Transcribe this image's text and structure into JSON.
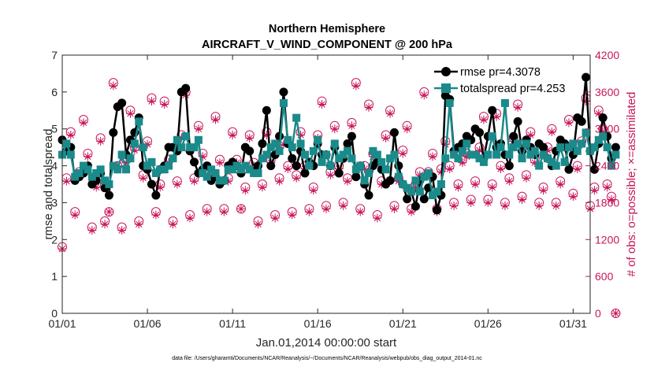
{
  "colors": {
    "rmse": "#000000",
    "spread": "#1a8a8a",
    "obs": "#c8155a",
    "axis": "#262626"
  },
  "chart_data": {
    "type": "line",
    "title_line1": "Northern Hemisphere",
    "title_line2": "AIRCRAFT_V_WIND_COMPONENT @ 200 hPa",
    "xlabel": "Jan.01,2014 00:00:00 start",
    "ylabel": "rmse and totalspread",
    "ylabel_right": "# of obs: o=possible; ×=assimilated",
    "xlim": [
      1,
      32
    ],
    "ylim": [
      0,
      7
    ],
    "ylim_right": [
      0,
      4200
    ],
    "x_ticks": [
      1,
      6,
      11,
      16,
      21,
      26,
      31
    ],
    "x_tick_labels": [
      "01/01",
      "01/06",
      "01/11",
      "01/16",
      "01/21",
      "01/26",
      "01/31"
    ],
    "y_ticks": [
      0,
      1,
      2,
      3,
      4,
      5,
      6,
      7
    ],
    "y_tick_labels": [
      "0",
      "1",
      "2",
      "3",
      "4",
      "5",
      "6",
      "7"
    ],
    "y_right_ticks": [
      0,
      600,
      1200,
      1800,
      2400,
      3000,
      3600,
      4200
    ],
    "y_right_tick_labels": [
      "0",
      "600",
      "1200",
      "1800",
      "2400",
      "3000",
      "3600",
      "4200"
    ],
    "legend": [
      "rmse pr=4.3078",
      "totalspread pr=4.253"
    ],
    "footnote": "data file: /Users/gharamti/Documents/NCAR/Reanalysis/~/Documents/NCAR/Reanalysis/webpub/obs_diag_output_2014-01.nc",
    "x_step_days": 0.25,
    "x_start": 1,
    "series": [
      {
        "name": "rmse",
        "values": [
          4.7,
          4.4,
          4.5,
          3.6,
          3.7,
          3.8,
          4.0,
          3.5,
          3.6,
          3.8,
          3.4,
          3.2,
          4.9,
          5.6,
          5.7,
          4.3,
          4.7,
          4.9,
          5.3,
          4.0,
          3.9,
          3.5,
          3.2,
          3.9,
          4.0,
          4.5,
          4.5,
          4.4,
          6.0,
          6.1,
          4.4,
          4.1,
          3.8,
          3.9,
          4.0,
          3.6,
          3.7,
          3.5,
          3.6,
          4.0,
          4.1,
          4.0,
          3.8,
          4.5,
          4.4,
          3.9,
          4.0,
          4.6,
          5.5,
          4.0,
          4.3,
          4.8,
          6.0,
          4.6,
          4.2,
          4.0,
          4.4,
          3.8,
          4.1,
          4.0,
          4.6,
          4.3,
          4.3,
          4.0,
          4.5,
          3.8,
          4.2,
          4.6,
          4.8,
          3.7,
          4.0,
          3.5,
          3.2,
          4.0,
          4.1,
          3.9,
          3.5,
          3.6,
          4.9,
          4.0,
          3.5,
          3.1,
          3.3,
          2.9,
          3.6,
          3.1,
          3.4,
          3.7,
          2.8,
          3.2,
          5.9,
          5.8,
          4.4,
          4.5,
          4.6,
          4.8,
          4.7,
          5.0,
          4.9,
          4.2,
          4.8,
          5.5,
          4.5,
          4.6,
          4.3,
          4.0,
          4.8,
          5.2,
          4.4,
          4.7,
          4.5,
          4.3,
          4.6,
          4.5,
          4.2,
          4.0,
          4.4,
          4.7,
          4.6,
          3.9,
          4.3,
          5.3,
          5.2,
          6.4,
          4.4,
          3.9,
          4.6,
          5.3,
          4.8,
          4.2,
          4.5
        ]
      },
      {
        "name": "totalspread",
        "values": [
          4.3,
          4.6,
          4.3,
          3.7,
          3.8,
          4.0,
          3.9,
          3.7,
          3.8,
          3.9,
          3.6,
          3.5,
          4.0,
          3.9,
          4.3,
          3.9,
          4.2,
          4.6,
          5.2,
          4.5,
          4.0,
          4.1,
          3.8,
          3.9,
          3.9,
          4.0,
          4.2,
          4.7,
          4.5,
          4.8,
          4.5,
          4.5,
          4.7,
          3.8,
          3.7,
          3.9,
          3.8,
          3.6,
          3.6,
          3.9,
          3.9,
          4.0,
          3.9,
          4.0,
          3.9,
          3.8,
          3.8,
          4.2,
          4.3,
          4.5,
          4.6,
          4.4,
          5.7,
          4.7,
          4.5,
          5.3,
          4.6,
          4.3,
          4.0,
          4.4,
          4.7,
          4.1,
          4.3,
          4.0,
          4.6,
          4.2,
          4.3,
          4.4,
          4.2,
          3.9,
          4.0,
          3.6,
          3.8,
          4.4,
          4.3,
          4.1,
          3.9,
          4.2,
          4.3,
          3.7,
          3.5,
          3.4,
          3.3,
          3.6,
          3.3,
          3.7,
          3.8,
          3.2,
          3.3,
          3.5,
          4.2,
          5.7,
          4.3,
          4.2,
          4.4,
          4.6,
          4.3,
          4.3,
          4.2,
          4.1,
          4.3,
          4.8,
          4.3,
          4.5,
          5.7,
          4.3,
          4.5,
          4.6,
          4.2,
          4.6,
          4.3,
          4.4,
          4.0,
          4.3,
          4.2,
          4.1,
          4.0,
          4.5,
          4.1,
          4.5,
          4.6,
          4.4,
          4.6,
          4.9,
          4.4,
          4.5,
          4.7,
          4.8,
          4.5,
          4.0,
          4.3
        ]
      },
      {
        "name": "obs_possible",
        "values": [
          1080,
          2200,
          2950,
          1650,
          2300,
          3150,
          2600,
          1400,
          2100,
          2850,
          1500,
          1650,
          3750,
          2400,
          1400,
          2500,
          3300,
          2700,
          1500,
          2250,
          2800,
          3500,
          1650,
          2100,
          3450,
          2500,
          1500,
          2150,
          2900,
          3600,
          1600,
          2200,
          3050,
          2600,
          1700,
          2250,
          3200,
          2500,
          1700,
          2200,
          2950,
          2500,
          1700,
          2050,
          2900,
          2450,
          1500,
          2100,
          2950,
          2500,
          1600,
          2200,
          2800,
          2400,
          1650,
          2250,
          2950,
          2400,
          1700,
          2050,
          2900,
          3450,
          1750,
          2300,
          3050,
          2400,
          1800,
          2200,
          3100,
          3750,
          1700,
          2400,
          3400,
          2600,
          1600,
          2150,
          2900,
          3300,
          1750,
          2200,
          2650,
          3050,
          1700,
          2100,
          2300,
          3600,
          2300,
          2600,
          1700,
          2350,
          2800,
          2400,
          1800,
          2100,
          2500,
          2600,
          1850,
          2150,
          2700,
          3200,
          1850,
          2100,
          3250,
          2400,
          1800,
          2200,
          2850,
          3400,
          1900,
          2250,
          2950,
          2500,
          1800,
          2050,
          2700,
          3000,
          1800,
          2150,
          2750,
          3150,
          1950,
          2400,
          2800,
          3500,
          1750,
          2050,
          3300,
          3000,
          2100,
          1900,
          0
        ]
      },
      {
        "name": "obs_assimilated",
        "values": [
          1050,
          2150,
          2900,
          1600,
          2250,
          3100,
          2550,
          1350,
          2050,
          2800,
          1450,
          1650,
          3700,
          2400,
          1350,
          2450,
          3250,
          2650,
          1450,
          2200,
          2750,
          3450,
          1600,
          2050,
          3400,
          2450,
          1450,
          2100,
          2850,
          3550,
          1550,
          2150,
          3000,
          2550,
          1650,
          2200,
          3150,
          2450,
          1650,
          2150,
          2900,
          2450,
          1700,
          2000,
          2850,
          2400,
          1450,
          2050,
          2900,
          2450,
          1550,
          2150,
          2750,
          2350,
          1600,
          2200,
          2900,
          2350,
          1650,
          2000,
          2850,
          3400,
          1700,
          2250,
          3000,
          2350,
          1750,
          2150,
          3050,
          3700,
          1650,
          2350,
          3350,
          2550,
          1550,
          2100,
          2850,
          3250,
          1700,
          2150,
          2600,
          3000,
          1650,
          2050,
          2250,
          3550,
          2250,
          2550,
          1650,
          2300,
          2750,
          2350,
          1750,
          2050,
          2450,
          2550,
          1800,
          2100,
          2650,
          3150,
          1800,
          2050,
          3200,
          2350,
          1750,
          2150,
          2800,
          3350,
          1850,
          2200,
          2900,
          2450,
          1750,
          2000,
          2650,
          2950,
          1750,
          2100,
          2700,
          3100,
          1900,
          2350,
          2750,
          3450,
          1700,
          2000,
          3250,
          2950,
          2050,
          1850,
          0
        ]
      }
    ]
  }
}
